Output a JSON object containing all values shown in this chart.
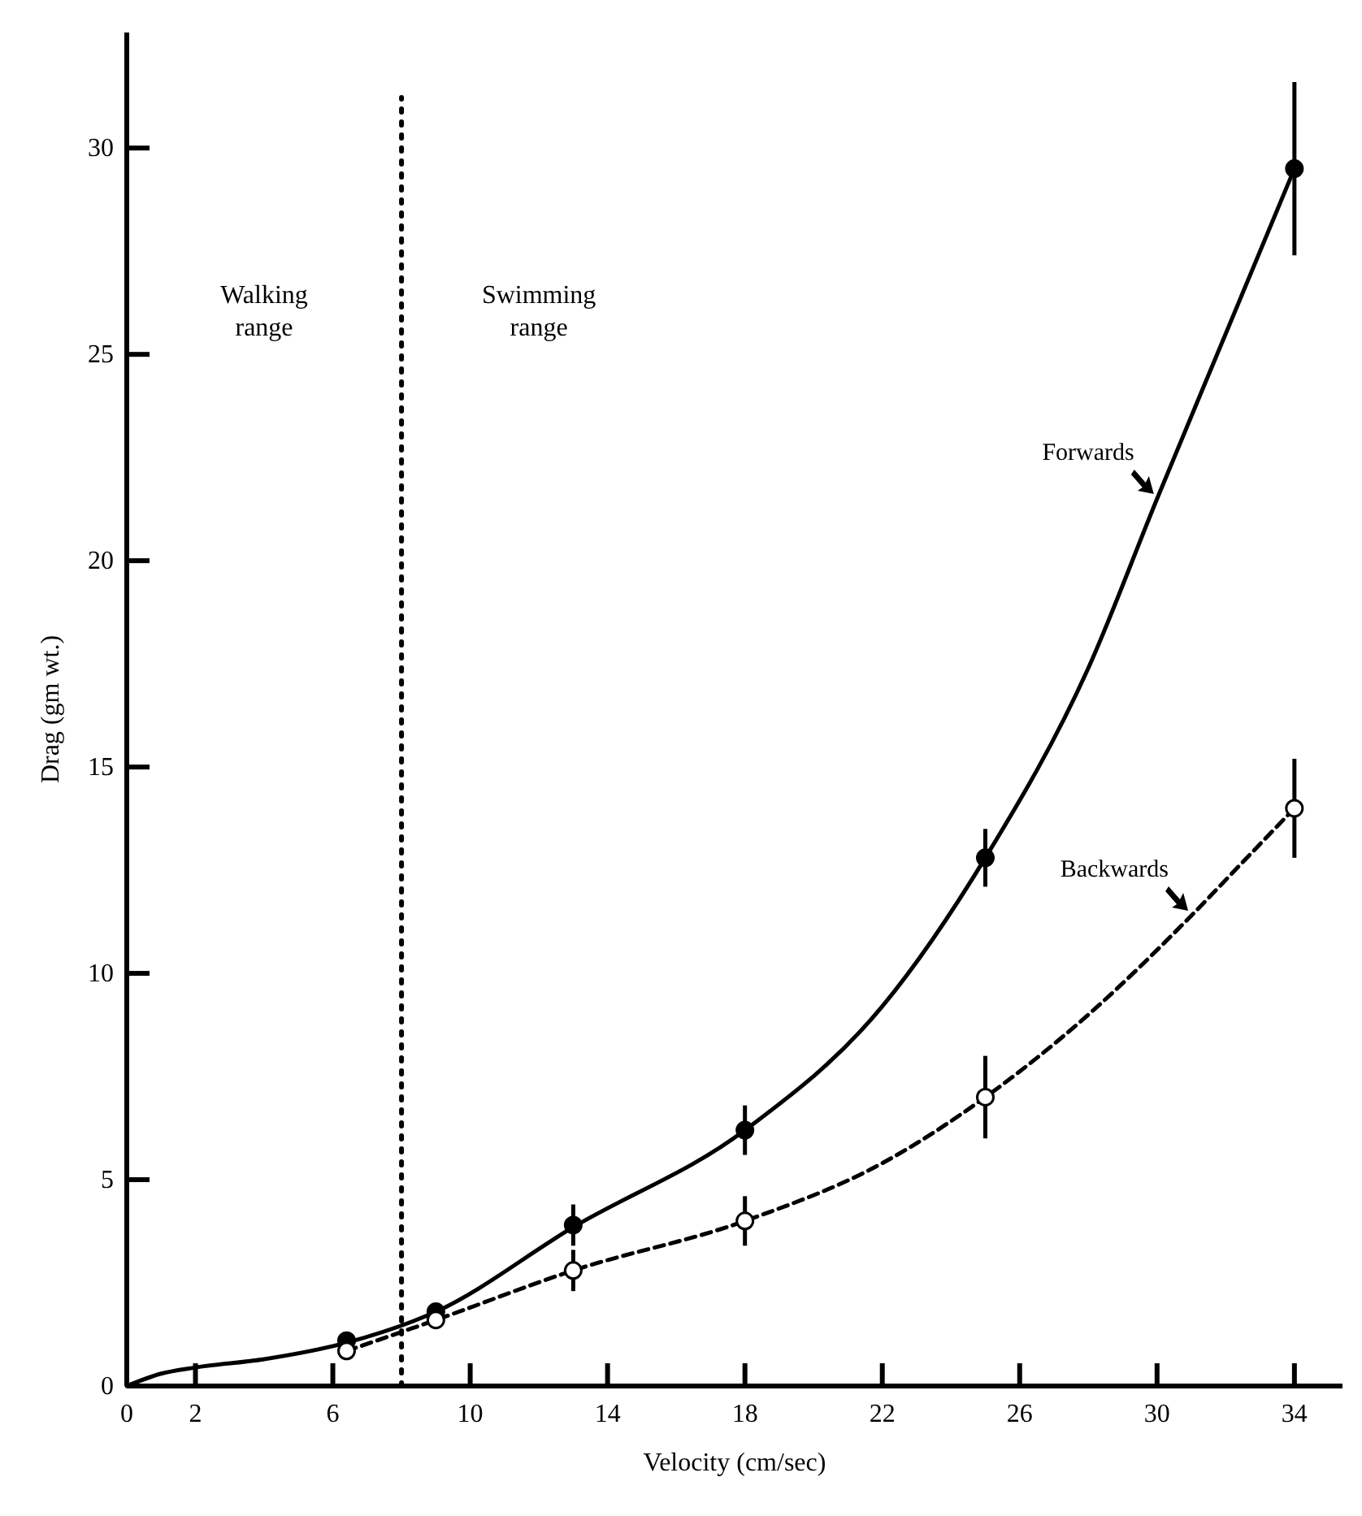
{
  "chart_data": {
    "type": "line",
    "xlabel": "Velocity (cm/sec)",
    "ylabel": "Drag (gm wt.)",
    "xlim": [
      0,
      35.4
    ],
    "ylim": [
      0,
      32.8
    ],
    "xticks": [
      0,
      2,
      6,
      10,
      14,
      18,
      22,
      26,
      30,
      34
    ],
    "yticks": [
      0,
      5,
      10,
      15,
      20,
      25,
      30
    ],
    "grid": false,
    "series": [
      {
        "name": "Forwards",
        "color": "#000000",
        "line_style": "solid",
        "marker": "none",
        "x": [
          0,
          1,
          2,
          4,
          6.4,
          9,
          13,
          18,
          22,
          25,
          28,
          30,
          32,
          34
        ],
        "values": [
          0,
          0.3,
          0.45,
          0.65,
          1.05,
          1.8,
          3.85,
          6.2,
          9.2,
          12.8,
          17.4,
          21.5,
          25.5,
          29.5
        ]
      },
      {
        "name": "Backwards",
        "color": "#000000",
        "line_style": "dashed",
        "marker": "none",
        "x": [
          6.4,
          9,
          13,
          18,
          22,
          25,
          28,
          31,
          32.5,
          34
        ],
        "values": [
          0.85,
          1.6,
          2.8,
          4.0,
          5.4,
          7.0,
          9.0,
          11.4,
          12.7,
          14.0
        ]
      },
      {
        "type": "scatter",
        "color": "#000000",
        "marker": "circle",
        "x": [
          6.4,
          9,
          13,
          18,
          25,
          34
        ],
        "values": [
          1.1,
          1.8,
          3.9,
          6.2,
          12.8,
          29.5
        ],
        "errors": [
          null,
          null,
          0.5,
          0.6,
          0.7,
          2.1
        ]
      },
      {
        "type": "scatter",
        "color": "#ffffff",
        "marker": "circle",
        "x": [
          6.4,
          9,
          13,
          18,
          25,
          34
        ],
        "values": [
          0.85,
          1.6,
          2.8,
          4.0,
          7.0,
          14.0
        ],
        "errors": [
          null,
          null,
          0.5,
          0.6,
          1.0,
          1.2
        ]
      }
    ],
    "ref_lines": [
      {
        "axis": "x",
        "value": 8,
        "line_style": "dotted",
        "color": "#000000"
      }
    ],
    "annotations": [
      "Walking range",
      "Swimming range"
    ]
  }
}
